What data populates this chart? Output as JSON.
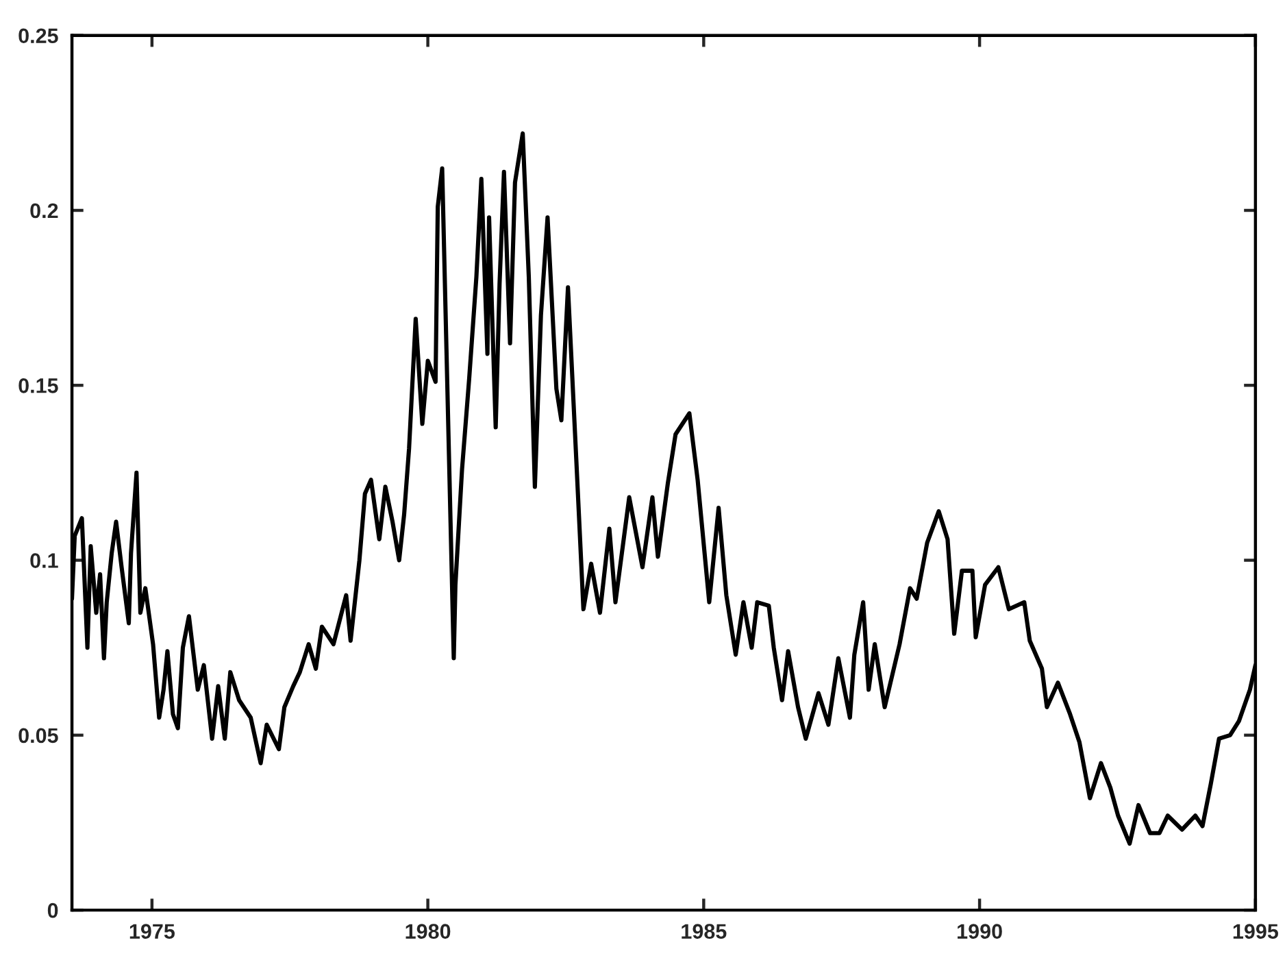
{
  "chart_data": {
    "type": "line",
    "x": [
      1973.55,
      1973.6,
      1973.73,
      1973.83,
      1973.89,
      1973.99,
      1974.06,
      1974.13,
      1974.18,
      1974.27,
      1974.35,
      1974.45,
      1974.58,
      1974.62,
      1974.72,
      1974.79,
      1974.88,
      1975.02,
      1975.13,
      1975.21,
      1975.28,
      1975.38,
      1975.47,
      1975.56,
      1975.67,
      1975.83,
      1975.94,
      1976.09,
      1976.2,
      1976.32,
      1976.42,
      1976.58,
      1976.79,
      1976.97,
      1977.08,
      1977.3,
      1977.4,
      1977.56,
      1977.68,
      1977.84,
      1977.97,
      1978.08,
      1978.29,
      1978.52,
      1978.6,
      1978.76,
      1978.86,
      1978.97,
      1979.12,
      1979.23,
      1979.36,
      1979.48,
      1979.57,
      1979.66,
      1979.78,
      1979.9,
      1980.0,
      1980.14,
      1980.18,
      1980.26,
      1980.47,
      1980.5,
      1980.62,
      1980.75,
      1980.88,
      1980.97,
      1981.08,
      1981.11,
      1981.23,
      1981.3,
      1981.38,
      1981.49,
      1981.58,
      1981.72,
      1981.83,
      1981.94,
      1982.05,
      1982.17,
      1982.33,
      1982.42,
      1982.54,
      1982.69,
      1982.82,
      1982.96,
      1983.12,
      1983.29,
      1983.4,
      1983.65,
      1983.89,
      1984.07,
      1984.17,
      1984.35,
      1984.49,
      1984.74,
      1984.89,
      1985.1,
      1985.27,
      1985.41,
      1985.58,
      1985.72,
      1985.87,
      1985.97,
      1986.18,
      1986.27,
      1986.42,
      1986.53,
      1986.71,
      1986.85,
      1987.08,
      1987.26,
      1987.44,
      1987.65,
      1987.73,
      1987.89,
      1987.99,
      1988.1,
      1988.28,
      1988.55,
      1988.74,
      1988.86,
      1989.05,
      1989.26,
      1989.42,
      1989.54,
      1989.68,
      1989.87,
      1989.93,
      1990.1,
      1990.34,
      1990.53,
      1990.81,
      1990.91,
      1991.13,
      1991.22,
      1991.42,
      1991.64,
      1991.81,
      1992.0,
      1992.2,
      1992.37,
      1992.51,
      1992.72,
      1992.88,
      1993.09,
      1993.26,
      1993.41,
      1993.67,
      1993.91,
      1994.04,
      1994.19,
      1994.34,
      1994.54,
      1994.7,
      1994.9,
      1995.0
    ],
    "series": [
      {
        "color": "#000000",
        "values": [
          0.089,
          0.107,
          0.112,
          0.075,
          0.104,
          0.085,
          0.096,
          0.072,
          0.088,
          0.102,
          0.111,
          0.098,
          0.082,
          0.102,
          0.125,
          0.085,
          0.092,
          0.076,
          0.055,
          0.063,
          0.074,
          0.056,
          0.052,
          0.075,
          0.084,
          0.063,
          0.07,
          0.049,
          0.064,
          0.049,
          0.068,
          0.06,
          0.055,
          0.042,
          0.053,
          0.046,
          0.058,
          0.064,
          0.068,
          0.076,
          0.069,
          0.081,
          0.076,
          0.09,
          0.077,
          0.1,
          0.119,
          0.123,
          0.106,
          0.121,
          0.111,
          0.1,
          0.113,
          0.132,
          0.169,
          0.139,
          0.157,
          0.151,
          0.201,
          0.212,
          0.072,
          0.093,
          0.126,
          0.152,
          0.181,
          0.209,
          0.159,
          0.198,
          0.138,
          0.179,
          0.211,
          0.162,
          0.208,
          0.222,
          0.181,
          0.121,
          0.17,
          0.198,
          0.149,
          0.14,
          0.178,
          0.129,
          0.086,
          0.099,
          0.085,
          0.109,
          0.088,
          0.118,
          0.098,
          0.118,
          0.101,
          0.122,
          0.136,
          0.142,
          0.123,
          0.088,
          0.115,
          0.09,
          0.073,
          0.088,
          0.075,
          0.088,
          0.087,
          0.075,
          0.06,
          0.074,
          0.058,
          0.049,
          0.062,
          0.053,
          0.072,
          0.055,
          0.073,
          0.088,
          0.063,
          0.076,
          0.058,
          0.076,
          0.092,
          0.089,
          0.105,
          0.114,
          0.106,
          0.079,
          0.097,
          0.097,
          0.078,
          0.093,
          0.098,
          0.086,
          0.088,
          0.077,
          0.069,
          0.058,
          0.065,
          0.056,
          0.048,
          0.032,
          0.042,
          0.035,
          0.027,
          0.019,
          0.03,
          0.022,
          0.022,
          0.027,
          0.023,
          0.027,
          0.024,
          0.036,
          0.049,
          0.05,
          0.054,
          0.063,
          0.07
        ]
      }
    ],
    "xlim": [
      1973.55,
      1995
    ],
    "ylim": [
      0,
      0.25
    ],
    "xticks": [
      1975,
      1980,
      1985,
      1990,
      1995
    ],
    "yticks": [
      0,
      0.05,
      0.1,
      0.15,
      0.2,
      0.25
    ]
  }
}
